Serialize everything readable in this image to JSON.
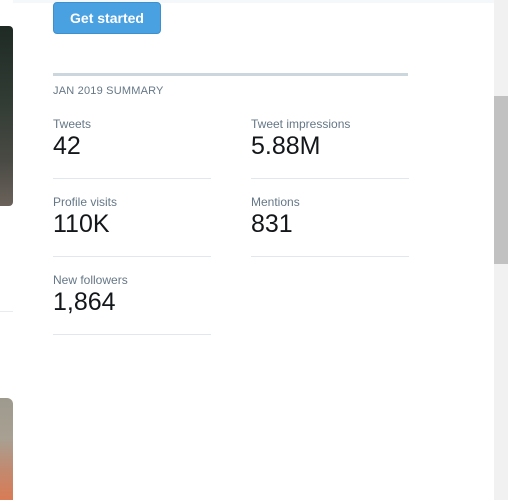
{
  "cta": {
    "label": "Get started"
  },
  "summary": {
    "heading": "JAN 2019 SUMMARY",
    "stats": [
      {
        "label": "Tweets",
        "value": "42"
      },
      {
        "label": "Tweet impressions",
        "value": "5.88M"
      },
      {
        "label": "Profile visits",
        "value": "110K"
      },
      {
        "label": "Mentions",
        "value": "831"
      },
      {
        "label": "New followers",
        "value": "1,864"
      }
    ]
  },
  "colors": {
    "button_blue": "#4aa1e2",
    "label_gray": "#657786",
    "value_text": "#14171a",
    "divider": "#e1e8ed"
  }
}
